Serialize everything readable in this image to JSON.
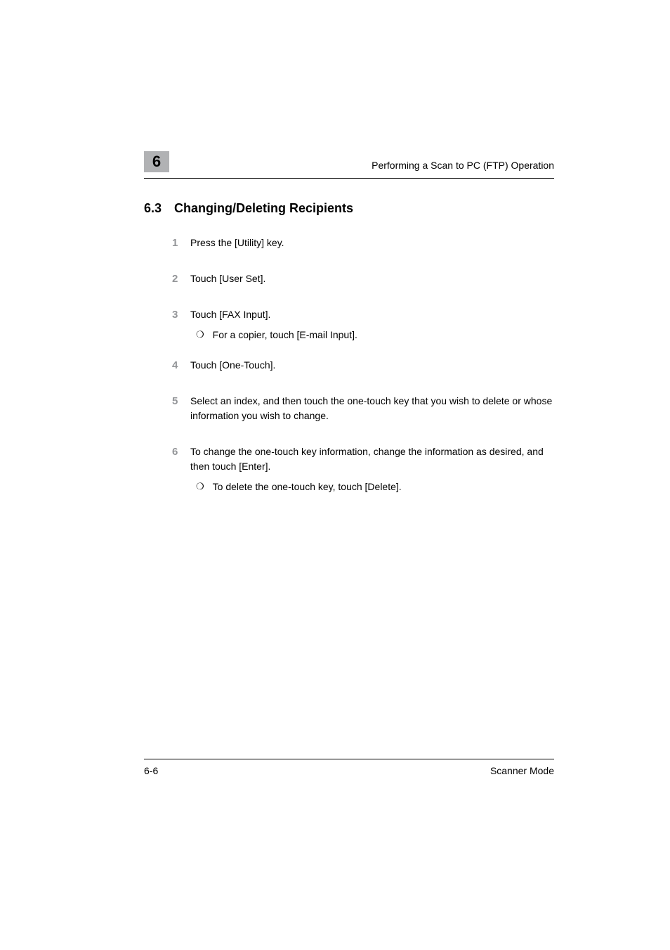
{
  "header": {
    "chapter_number": "6",
    "chapter_title": "Performing a Scan to PC (FTP) Operation"
  },
  "section": {
    "number": "6.3",
    "title": "Changing/Deleting Recipients"
  },
  "steps": [
    {
      "num": "1",
      "text": "Press the [Utility] key."
    },
    {
      "num": "2",
      "text": "Touch [User Set]."
    },
    {
      "num": "3",
      "text": "Touch [FAX Input].",
      "sub": "For a copier, touch [E-mail Input]."
    },
    {
      "num": "4",
      "text": "Touch [One-Touch]."
    },
    {
      "num": "5",
      "text": "Select an index, and then touch the one-touch key that you wish to delete or whose information you wish to change."
    },
    {
      "num": "6",
      "text": "To change the one-touch key information, change the information as desired, and then touch [Enter].",
      "sub": "To delete the one-touch key, touch [Delete]."
    }
  ],
  "footer": {
    "page_number": "6-6",
    "doc_title": "Scanner Mode"
  },
  "colors": {
    "chapter_box_bg": "#b1b2b4",
    "step_number_color": "#939598",
    "text_color": "#000000",
    "background": "#ffffff"
  },
  "typography": {
    "body_fontsize": 14,
    "section_title_fontsize": 18,
    "chapter_number_fontsize": 22
  }
}
